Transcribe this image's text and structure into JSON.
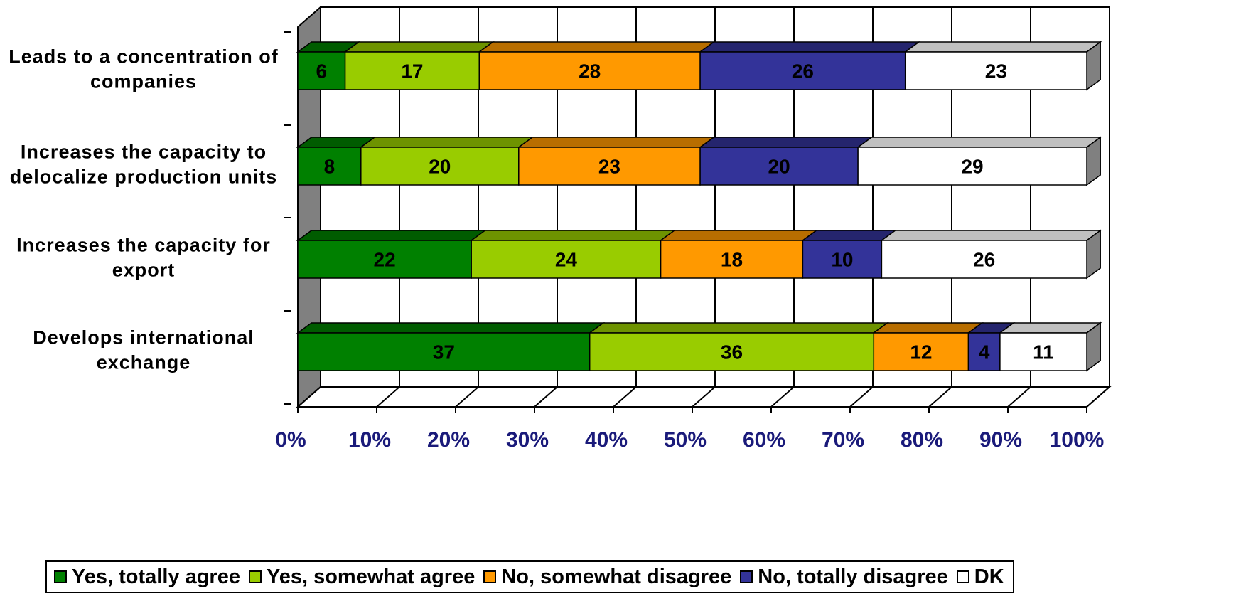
{
  "chart_data": {
    "type": "bar",
    "orientation": "horizontal",
    "stacked": "percent",
    "categories": [
      "Leads to a concentration of companies",
      "Increases the capacity to delocalize production units",
      "Increases the capacity for export",
      "Develops international exchange"
    ],
    "category_lines": [
      [
        "Leads to a concentration of",
        "companies"
      ],
      [
        "Increases the capacity to",
        "delocalize production units"
      ],
      [
        "Increases the capacity for",
        "export"
      ],
      [
        "Develops international",
        "exchange"
      ]
    ],
    "series": [
      {
        "name": "Yes, totally agree",
        "color": "#008000",
        "values": [
          6,
          8,
          22,
          37
        ]
      },
      {
        "name": "Yes, somewhat agree",
        "color": "#99CC00",
        "values": [
          17,
          20,
          24,
          36
        ]
      },
      {
        "name": "No, somewhat disagree",
        "color": "#FF9900",
        "values": [
          28,
          23,
          18,
          12
        ]
      },
      {
        "name": "No, totally disagree",
        "color": "#333399",
        "values": [
          26,
          20,
          10,
          4
        ]
      },
      {
        "name": "DK",
        "color": "#FFFFFF",
        "values": [
          23,
          29,
          26,
          11
        ]
      }
    ],
    "x_ticks": [
      "0%",
      "10%",
      "20%",
      "30%",
      "40%",
      "50%",
      "60%",
      "70%",
      "80%",
      "90%",
      "100%"
    ],
    "xlim": [
      0,
      100
    ],
    "grid": true,
    "three_d": true,
    "legend_position": "bottom"
  },
  "legend": {
    "items": [
      {
        "label": "Yes, totally agree",
        "color": "#008000"
      },
      {
        "label": "Yes, somewhat agree",
        "color": "#99CC00"
      },
      {
        "label": "No, somewhat disagree",
        "color": "#FF9900"
      },
      {
        "label": "No, totally disagree",
        "color": "#333399"
      },
      {
        "label": "DK",
        "color": "#FFFFFF"
      }
    ]
  }
}
